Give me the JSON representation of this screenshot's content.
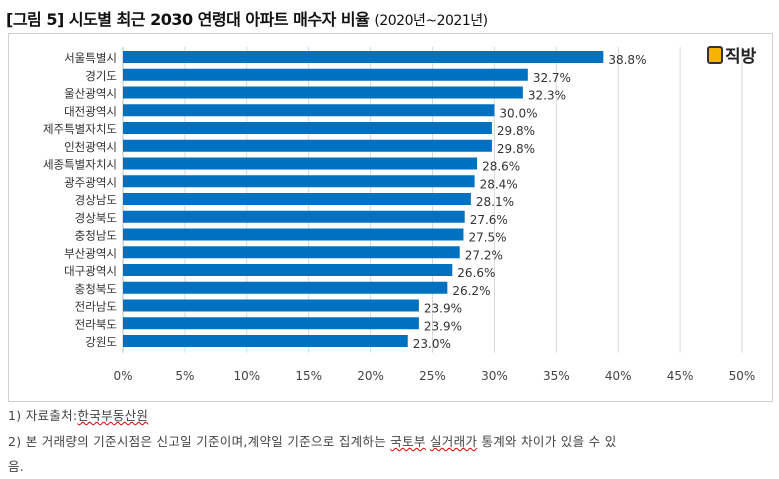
{
  "title": {
    "main": "[그림 5] 시도별 최근 2030 연령대 아파트 매수자 비율",
    "sub": "(2020년~2021년)"
  },
  "logo": {
    "text": "직방"
  },
  "chart_data": {
    "type": "bar",
    "orientation": "horizontal",
    "categories": [
      "서울특별시",
      "경기도",
      "울산광역시",
      "대전광역시",
      "제주특별자치도",
      "인천광역시",
      "세종특별자치시",
      "광주광역시",
      "경상남도",
      "경상북도",
      "충청남도",
      "부산광역시",
      "대구광역시",
      "충청북도",
      "전라남도",
      "전라북도",
      "강원도"
    ],
    "values": [
      38.8,
      32.7,
      32.3,
      30.0,
      29.8,
      29.8,
      28.6,
      28.4,
      28.1,
      27.6,
      27.5,
      27.2,
      26.6,
      26.2,
      23.9,
      23.9,
      23.0
    ],
    "labels": [
      "38.8%",
      "32.7%",
      "32.3%",
      "30.0%",
      "29.8%",
      "29.8%",
      "28.6%",
      "28.4%",
      "28.1%",
      "27.6%",
      "27.5%",
      "27.2%",
      "26.6%",
      "26.2%",
      "23.9%",
      "23.9%",
      "23.0%"
    ],
    "xticks": [
      "0%",
      "5%",
      "10%",
      "15%",
      "20%",
      "25%",
      "30%",
      "35%",
      "40%",
      "45%",
      "50%"
    ],
    "xlim": [
      0,
      50
    ],
    "grid": true,
    "bar_color": "#0070c0"
  },
  "notes": {
    "n1_prefix": "1) 자료출처:",
    "n1_source": "한국부동산원",
    "n2_a": "2) 본 거래량의 기준시점은 신고일 기준이며,계약일 기준으로 집계하는 ",
    "n2_b": "국토부",
    "n2_c": " ",
    "n2_d": "실거래가",
    "n2_e": " 통계와 차이가 있을 수 있",
    "n3": "음."
  }
}
